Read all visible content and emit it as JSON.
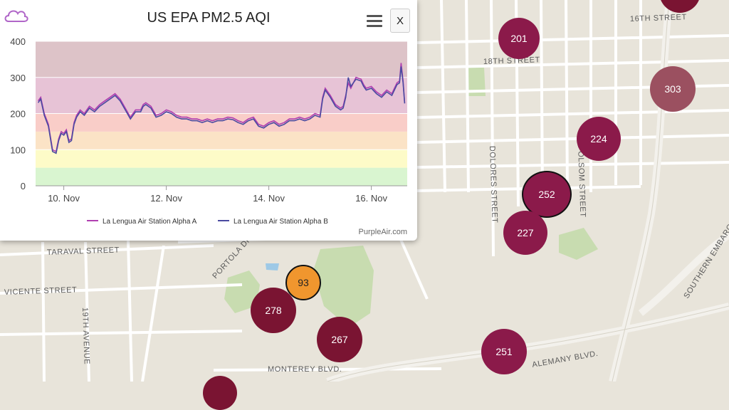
{
  "popup": {
    "title": "US EPA PM2.5 AQI",
    "close_label": "X",
    "credit": "PurpleAir.com"
  },
  "streets": [
    {
      "label": "18TH STREET"
    },
    {
      "label": "16TH STREET"
    },
    {
      "label": "DOLORES STREET"
    },
    {
      "label": "FOLSOM STREET"
    },
    {
      "label": "TARAVAL STREET"
    },
    {
      "label": "PORTOLA DRIVE"
    },
    {
      "label": "VICENTE STREET"
    },
    {
      "label": "19TH AVENUE"
    },
    {
      "label": "MONTEREY BLVD."
    },
    {
      "label": "ALEMANY BLVD."
    },
    {
      "label": "SOUTHERN EMBARCA"
    }
  ],
  "markers": [
    {
      "value": "201",
      "color": "#8b1a4a"
    },
    {
      "value": "224",
      "color": "#8b1a4a"
    },
    {
      "value": "303",
      "color": "#9b5060"
    },
    {
      "value": "252",
      "color": "#8b1a4a",
      "selected": true
    },
    {
      "value": "227",
      "color": "#8b1a4a"
    },
    {
      "value": "93",
      "color": "#f0962e",
      "selected": true
    },
    {
      "value": "278",
      "color": "#7a1432"
    },
    {
      "value": "267",
      "color": "#7a1432"
    },
    {
      "value": "251",
      "color": "#8b1a4a"
    }
  ],
  "chart_data": {
    "type": "line",
    "title": "US EPA PM2.5 AQI",
    "ylim": [
      0,
      400
    ],
    "yticks": [
      0,
      100,
      200,
      300,
      400
    ],
    "xlim": [
      9.45,
      16.7
    ],
    "xticks": [
      {
        "value": 10,
        "label": "10. Nov"
      },
      {
        "value": 12,
        "label": "12. Nov"
      },
      {
        "value": 14,
        "label": "14. Nov"
      },
      {
        "value": 16,
        "label": "16. Nov"
      }
    ],
    "bands": [
      {
        "from": 0,
        "to": 50,
        "color": "#d9f5d0"
      },
      {
        "from": 50,
        "to": 100,
        "color": "#fdfbc8"
      },
      {
        "from": 100,
        "to": 150,
        "color": "#fbe3c6"
      },
      {
        "from": 150,
        "to": 200,
        "color": "#f9cdc8"
      },
      {
        "from": 200,
        "to": 300,
        "color": "#e7c3d6"
      },
      {
        "from": 300,
        "to": 400,
        "color": "#ddc3c8"
      }
    ],
    "series": [
      {
        "name": "La Lengua Air Station Alpha A",
        "color": "#b03fb0",
        "x": [
          9.5,
          9.55,
          9.62,
          9.7,
          9.78,
          9.85,
          9.9,
          9.95,
          10.0,
          10.05,
          10.1,
          10.15,
          10.2,
          10.25,
          10.32,
          10.4,
          10.5,
          10.6,
          10.7,
          10.8,
          10.9,
          11.0,
          11.1,
          11.2,
          11.3,
          11.4,
          11.5,
          11.55,
          11.6,
          11.7,
          11.8,
          11.9,
          12.0,
          12.1,
          12.2,
          12.3,
          12.4,
          12.5,
          12.6,
          12.7,
          12.8,
          12.9,
          13.0,
          13.1,
          13.2,
          13.3,
          13.4,
          13.5,
          13.6,
          13.7,
          13.8,
          13.9,
          14.0,
          14.1,
          14.2,
          14.3,
          14.4,
          14.5,
          14.6,
          14.7,
          14.8,
          14.9,
          15.0,
          15.05,
          15.1,
          15.2,
          15.3,
          15.4,
          15.45,
          15.5,
          15.55,
          15.6,
          15.7,
          15.8,
          15.85,
          15.9,
          16.0,
          16.1,
          16.2,
          16.3,
          16.4,
          16.45,
          16.5,
          16.55,
          16.58,
          16.62,
          16.65
        ],
        "y": [
          235,
          245,
          200,
          170,
          100,
          95,
          130,
          150,
          145,
          155,
          125,
          130,
          175,
          195,
          210,
          200,
          220,
          210,
          225,
          235,
          245,
          255,
          240,
          215,
          190,
          210,
          210,
          225,
          230,
          220,
          195,
          200,
          210,
          205,
          195,
          190,
          190,
          185,
          185,
          180,
          185,
          180,
          185,
          185,
          190,
          188,
          180,
          175,
          185,
          190,
          170,
          165,
          175,
          180,
          170,
          175,
          185,
          185,
          190,
          185,
          190,
          200,
          195,
          245,
          270,
          250,
          225,
          215,
          220,
          250,
          285,
          270,
          300,
          295,
          280,
          270,
          275,
          260,
          250,
          265,
          255,
          270,
          285,
          290,
          340,
          290,
          230
        ]
      },
      {
        "name": "La Lengua Air Station Alpha B",
        "color": "#4a4aa0",
        "x": [
          9.5,
          9.55,
          9.62,
          9.7,
          9.78,
          9.85,
          9.9,
          9.95,
          10.0,
          10.05,
          10.1,
          10.15,
          10.2,
          10.25,
          10.32,
          10.4,
          10.5,
          10.6,
          10.7,
          10.8,
          10.9,
          11.0,
          11.1,
          11.2,
          11.3,
          11.4,
          11.5,
          11.55,
          11.6,
          11.7,
          11.8,
          11.9,
          12.0,
          12.1,
          12.2,
          12.3,
          12.4,
          12.5,
          12.6,
          12.7,
          12.8,
          12.9,
          13.0,
          13.1,
          13.2,
          13.3,
          13.4,
          13.5,
          13.6,
          13.7,
          13.8,
          13.9,
          14.0,
          14.1,
          14.2,
          14.3,
          14.4,
          14.5,
          14.6,
          14.7,
          14.8,
          14.9,
          15.0,
          15.05,
          15.1,
          15.2,
          15.3,
          15.4,
          15.45,
          15.5,
          15.55,
          15.6,
          15.7,
          15.8,
          15.85,
          15.9,
          16.0,
          16.1,
          16.2,
          16.3,
          16.4,
          16.45,
          16.5,
          16.55,
          16.58,
          16.62,
          16.65
        ],
        "y": [
          230,
          240,
          195,
          165,
          95,
          90,
          125,
          145,
          140,
          150,
          120,
          125,
          170,
          190,
          205,
          195,
          215,
          205,
          220,
          230,
          240,
          250,
          235,
          210,
          185,
          205,
          205,
          220,
          225,
          215,
          190,
          195,
          205,
          200,
          190,
          185,
          185,
          180,
          180,
          175,
          180,
          175,
          180,
          180,
          185,
          183,
          175,
          170,
          180,
          185,
          165,
          160,
          170,
          175,
          165,
          170,
          180,
          180,
          185,
          180,
          185,
          195,
          190,
          240,
          265,
          245,
          220,
          210,
          215,
          245,
          300,
          275,
          295,
          290,
          275,
          265,
          270,
          255,
          245,
          260,
          250,
          265,
          280,
          285,
          330,
          285,
          228
        ]
      }
    ]
  }
}
